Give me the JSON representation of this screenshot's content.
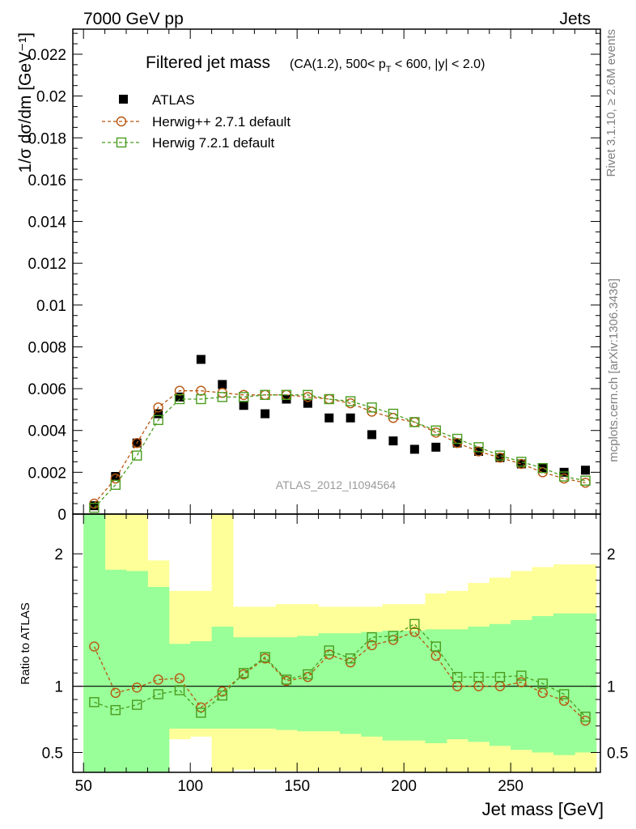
{
  "header": {
    "left": "7000 GeV pp",
    "right": "Jets"
  },
  "side_labels": {
    "rivet": "Rivet 3.1.10, ≥ 2.6M events",
    "mcplots": "mcplots.cern.ch [arXiv:1306.3436]"
  },
  "watermark": "ATLAS_2012_I1094564",
  "chart_data": [
    {
      "type": "scatter",
      "title": "Filtered jet mass",
      "subtitle_parts": [
        "(CA(1.2), 500< p",
        "T",
        " < 600, |y| < 2.0)"
      ],
      "ylabel": "1/σ dσ/dm [GeV⁻¹]",
      "xlim": [
        45,
        292
      ],
      "ylim": [
        0,
        0.0232
      ],
      "yticks": [
        0,
        0.002,
        0.004,
        0.006,
        0.008,
        0.01,
        0.012,
        0.014,
        0.016,
        0.018,
        0.02,
        0.022
      ],
      "ytick_labels": [
        "0",
        "0.002",
        "0.004",
        "0.006",
        "0.008",
        "0.01",
        "0.012",
        "0.014",
        "0.016",
        "0.018",
        "0.02",
        "0.022"
      ],
      "legend_position": "top-left",
      "x": [
        55,
        65,
        75,
        85,
        95,
        105,
        115,
        125,
        135,
        145,
        155,
        165,
        175,
        185,
        195,
        205,
        215,
        225,
        235,
        245,
        255,
        265,
        275,
        285
      ],
      "series": [
        {
          "name": "ATLAS",
          "marker": "filled-square",
          "color": "#000000",
          "values": [
            0.0004,
            0.0018,
            0.0034,
            0.0048,
            0.0056,
            0.0074,
            0.0062,
            0.0052,
            0.0048,
            0.0055,
            0.0053,
            0.0046,
            0.0046,
            0.0038,
            0.0035,
            0.0031,
            0.0032,
            0.0034,
            0.003,
            0.0027,
            0.0024,
            0.0022,
            0.002,
            0.0021
          ]
        },
        {
          "name": "Herwig++ 2.7.1 default",
          "marker": "open-circle",
          "color": "#b8560f",
          "values": [
            0.0005,
            0.0017,
            0.0034,
            0.0051,
            0.0059,
            0.0059,
            0.0058,
            0.0057,
            0.0057,
            0.0057,
            0.0056,
            0.0055,
            0.0053,
            0.0049,
            0.0046,
            0.0044,
            0.0039,
            0.0034,
            0.003,
            0.0027,
            0.0024,
            0.002,
            0.0017,
            0.0015
          ]
        },
        {
          "name": "Herwig 7.2.1 default",
          "marker": "open-square",
          "color": "#4a9c1e",
          "values": [
            0.0003,
            0.0014,
            0.0028,
            0.0045,
            0.0055,
            0.0055,
            0.0056,
            0.0056,
            0.0057,
            0.0057,
            0.0057,
            0.0055,
            0.0054,
            0.0051,
            0.0048,
            0.0044,
            0.004,
            0.0036,
            0.0032,
            0.0028,
            0.0025,
            0.0022,
            0.0018,
            0.0016
          ]
        }
      ]
    },
    {
      "type": "line",
      "xlabel": "Jet mass [GeV]",
      "ylabel": "Ratio to ATLAS",
      "xlim": [
        45,
        292
      ],
      "ylim": [
        0.35,
        2.3
      ],
      "xticks": [
        50,
        100,
        150,
        200,
        250
      ],
      "xtick_labels": [
        "50",
        "100",
        "150",
        "200",
        "250"
      ],
      "yticks": [
        0.5,
        1,
        2
      ],
      "ytick_labels": [
        "0.5",
        "1",
        "2"
      ],
      "reference_line": 1,
      "bin_edges": [
        50,
        60,
        70,
        80,
        90,
        100,
        110,
        120,
        130,
        140,
        150,
        160,
        170,
        180,
        190,
        200,
        210,
        220,
        230,
        240,
        250,
        260,
        270,
        280,
        290
      ],
      "bands": [
        {
          "name": "outer",
          "color": "#ffff99",
          "low": [
            0.35,
            0.35,
            0.35,
            0.35,
            0.6,
            0.62,
            0.35,
            0.37,
            0.37,
            0.36,
            0.36,
            0.36,
            0.36,
            0.36,
            0.35,
            0.35,
            0.35,
            0.35,
            0.35,
            0.35,
            0.35,
            0.35,
            0.35,
            0.35
          ],
          "high": [
            2.3,
            2.3,
            2.3,
            1.95,
            1.72,
            1.72,
            2.3,
            1.6,
            1.6,
            1.62,
            1.62,
            1.6,
            1.6,
            1.6,
            1.62,
            1.62,
            1.7,
            1.72,
            1.78,
            1.82,
            1.87,
            1.9,
            1.92,
            1.92
          ]
        },
        {
          "name": "inner",
          "color": "#99ff99",
          "low": [
            0.35,
            0.35,
            0.35,
            0.35,
            0.68,
            0.68,
            0.68,
            0.68,
            0.68,
            0.67,
            0.66,
            0.66,
            0.64,
            0.62,
            0.59,
            0.59,
            0.57,
            0.6,
            0.58,
            0.55,
            0.52,
            0.5,
            0.48,
            0.5
          ],
          "high": [
            2.3,
            1.88,
            1.87,
            1.75,
            1.32,
            1.34,
            1.45,
            1.37,
            1.37,
            1.37,
            1.38,
            1.4,
            1.4,
            1.41,
            1.42,
            1.42,
            1.43,
            1.43,
            1.45,
            1.47,
            1.5,
            1.53,
            1.55,
            1.55
          ]
        }
      ],
      "x": [
        55,
        65,
        75,
        85,
        95,
        105,
        115,
        125,
        135,
        145,
        155,
        165,
        175,
        185,
        195,
        205,
        215,
        225,
        235,
        245,
        255,
        265,
        275,
        285
      ],
      "series": [
        {
          "name": "Herwig++ 2.7.1 default",
          "marker": "open-circle",
          "color": "#b8560f",
          "values": [
            1.3,
            0.95,
            0.99,
            1.05,
            1.06,
            0.84,
            0.96,
            1.09,
            1.21,
            1.04,
            1.07,
            1.24,
            1.18,
            1.31,
            1.35,
            1.41,
            1.23,
            1.0,
            1.0,
            1.0,
            1.03,
            0.95,
            0.89,
            0.74
          ]
        },
        {
          "name": "Herwig 7.2.1 default",
          "marker": "open-square",
          "color": "#4a9c1e",
          "values": [
            0.88,
            0.82,
            0.86,
            0.94,
            0.97,
            0.8,
            0.93,
            1.1,
            1.22,
            1.05,
            1.09,
            1.27,
            1.21,
            1.37,
            1.38,
            1.47,
            1.3,
            1.07,
            1.07,
            1.07,
            1.08,
            1.02,
            0.94,
            0.77
          ]
        }
      ]
    }
  ]
}
